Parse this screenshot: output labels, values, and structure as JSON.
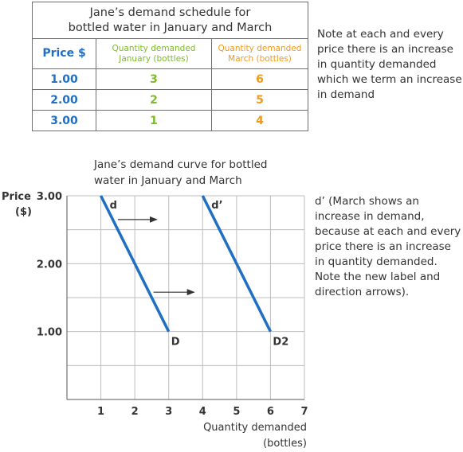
{
  "schedule": {
    "title_line1": "Jane’s demand schedule for",
    "title_line2": "bottled water in January and March",
    "headers": {
      "price": "Price $",
      "jan_line1": "Quantity demanded",
      "jan_line2": "January (bottles)",
      "mar_line1": "Quantity demanded",
      "mar_line2": "March (bottles)"
    },
    "rows": [
      {
        "price": "1.00",
        "jan": "3",
        "mar": "6"
      },
      {
        "price": "2.00",
        "jan": "2",
        "mar": "5"
      },
      {
        "price": "3.00",
        "jan": "1",
        "mar": "4"
      }
    ]
  },
  "notes": {
    "top": "Note at each and every price there is an increase in quantity demanded which we term an increase in demand",
    "right": "d’ (March shows an increase in demand, because at each and every price there is an increase in quantity demanded. Note the new label and direction arrows)."
  },
  "colors": {
    "price_blue": "#1f6fc4",
    "january_green": "#7dbb2a",
    "march_orange": "#f09a1c",
    "line_blue": "#1f6fc4",
    "grid": "#bdbdbd",
    "text": "#333333"
  },
  "chart_data": {
    "type": "line",
    "title": "Jane’s demand curve for bottled water in January and March",
    "title_line1": "Jane’s demand curve for bottled",
    "title_line2": "water in January and March",
    "xlabel_line1": "Quantity demanded",
    "xlabel_line2": "(bottles)",
    "ylabel_line1": "Price",
    "ylabel_line2": "($)",
    "xlim": [
      0,
      7
    ],
    "ylim": [
      0,
      3
    ],
    "x_ticks": [
      1,
      2,
      3,
      4,
      5,
      6,
      7
    ],
    "x_tick_labels": [
      "1",
      "2",
      "3",
      "4",
      "5",
      "6",
      "7"
    ],
    "y_ticks": [
      1,
      2,
      3
    ],
    "y_tick_labels": [
      "1.00",
      "2.00",
      "3.00"
    ],
    "grid": true,
    "series": [
      {
        "top_label": "d",
        "end_label": "D",
        "points": [
          {
            "x": 1,
            "y": 3
          },
          {
            "x": 2,
            "y": 2
          },
          {
            "x": 3,
            "y": 1
          }
        ]
      },
      {
        "top_label": "d’",
        "end_label": "D2",
        "points": [
          {
            "x": 4,
            "y": 3
          },
          {
            "x": 5,
            "y": 2
          },
          {
            "x": 6,
            "y": 1
          }
        ]
      }
    ],
    "arrows": [
      {
        "from": {
          "x": 1.5,
          "y": 2.65
        },
        "to": {
          "x": 2.65,
          "y": 2.65
        }
      },
      {
        "from": {
          "x": 2.55,
          "y": 1.58
        },
        "to": {
          "x": 3.75,
          "y": 1.58
        }
      }
    ]
  }
}
